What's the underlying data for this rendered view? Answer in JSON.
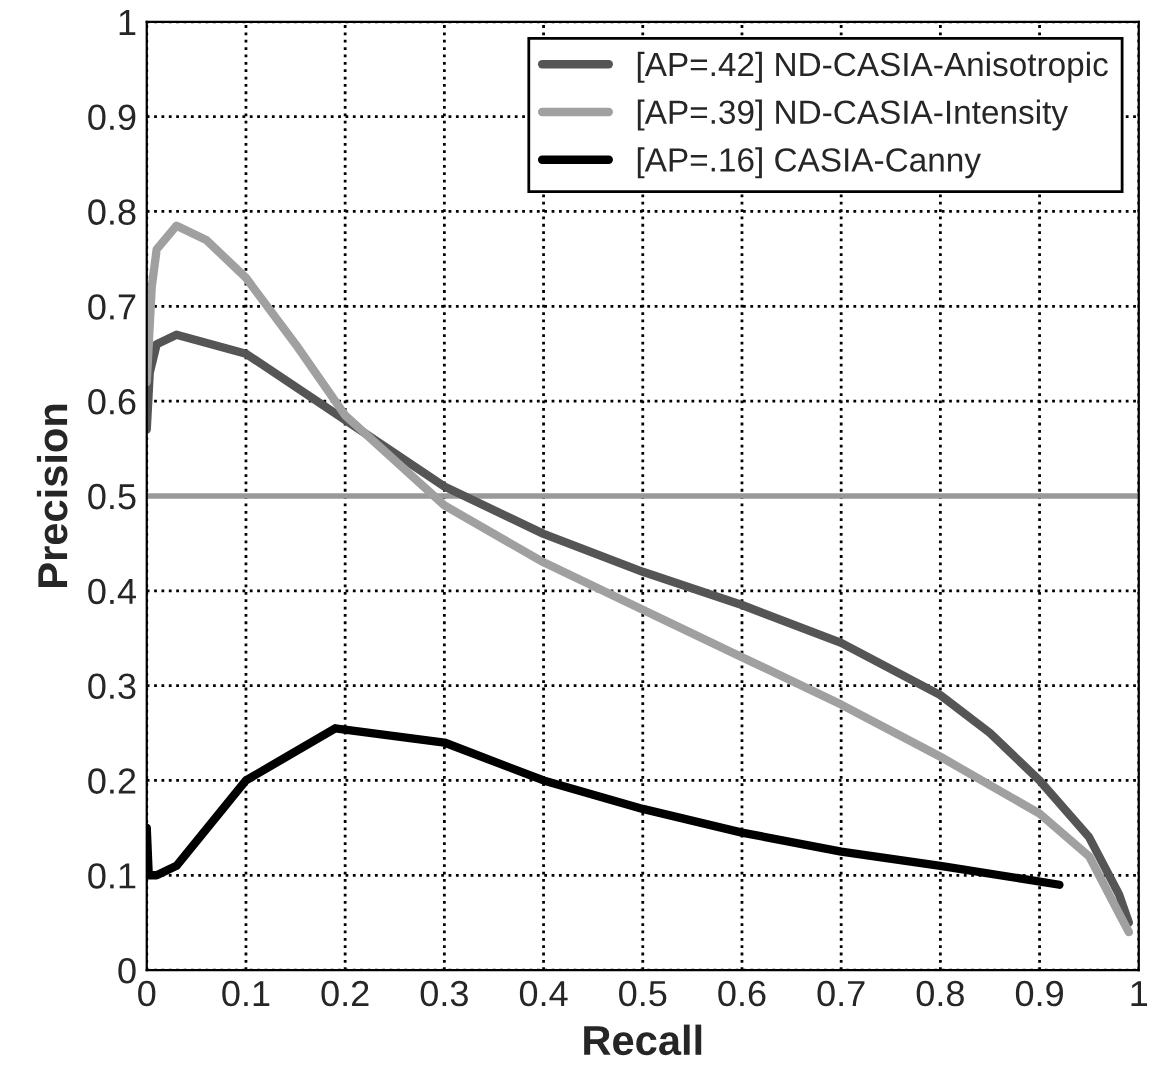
{
  "chart_data": {
    "type": "line",
    "xlabel": "Recall",
    "ylabel": "Precision",
    "xlim": [
      0,
      1
    ],
    "ylim": [
      0,
      1
    ],
    "xticks": [
      0,
      0.1,
      0.2,
      0.3,
      0.4,
      0.5,
      0.6,
      0.7,
      0.8,
      0.9,
      1
    ],
    "yticks": [
      0,
      0.1,
      0.2,
      0.3,
      0.4,
      0.5,
      0.6,
      0.7,
      0.8,
      0.9,
      1
    ],
    "grid": true,
    "legend": "top right",
    "line_style": "solid",
    "ref_lines": [
      {
        "axis": "y",
        "value": 0.5,
        "color": "#999999"
      }
    ],
    "series": [
      {
        "name": "[AP=.42] ND-CASIA-Anisotropic",
        "color": "#555555",
        "x": [
          0,
          0.003,
          0.01,
          0.03,
          0.1,
          0.2,
          0.3,
          0.4,
          0.5,
          0.6,
          0.7,
          0.8,
          0.85,
          0.9,
          0.95,
          0.98,
          0.99
        ],
        "values": [
          0.57,
          0.63,
          0.66,
          0.67,
          0.65,
          0.58,
          0.51,
          0.46,
          0.42,
          0.385,
          0.345,
          0.29,
          0.25,
          0.2,
          0.14,
          0.08,
          0.05
        ]
      },
      {
        "name": "[AP=.39] ND-CASIA-Intensity",
        "color": "#a0a0a0",
        "x": [
          0,
          0.005,
          0.01,
          0.03,
          0.06,
          0.1,
          0.15,
          0.2,
          0.3,
          0.4,
          0.5,
          0.6,
          0.7,
          0.8,
          0.9,
          0.95,
          0.98,
          0.99
        ],
        "values": [
          0.62,
          0.72,
          0.76,
          0.785,
          0.77,
          0.73,
          0.66,
          0.585,
          0.49,
          0.43,
          0.38,
          0.33,
          0.28,
          0.225,
          0.165,
          0.12,
          0.06,
          0.04
        ]
      },
      {
        "name": "[AP=.16] CASIA-Canny",
        "color": "#000000",
        "x": [
          0,
          0.002,
          0.01,
          0.03,
          0.1,
          0.19,
          0.3,
          0.4,
          0.5,
          0.6,
          0.7,
          0.8,
          0.92
        ],
        "values": [
          0.15,
          0.1,
          0.1,
          0.11,
          0.2,
          0.255,
          0.24,
          0.2,
          0.17,
          0.145,
          0.125,
          0.11,
          0.09
        ]
      }
    ]
  }
}
